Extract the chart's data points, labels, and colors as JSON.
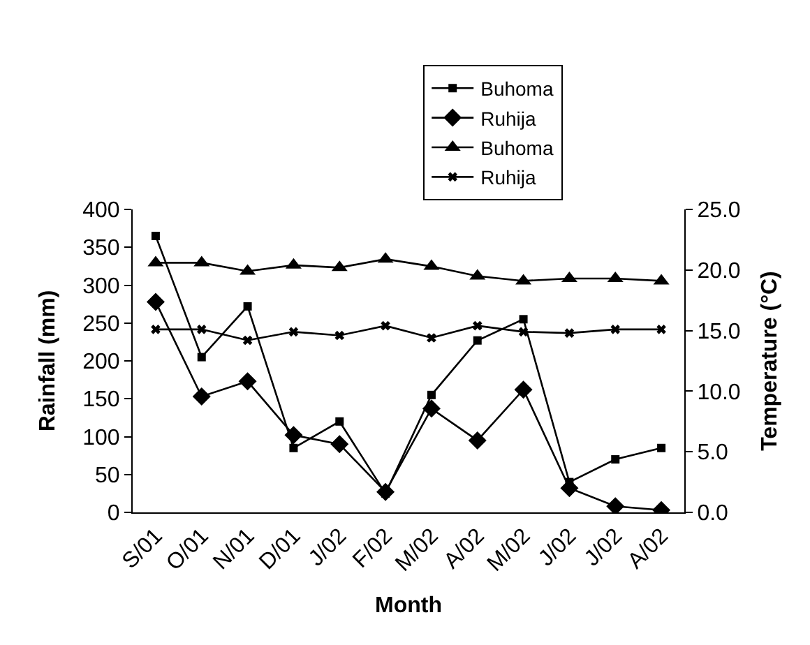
{
  "chart_data": {
    "type": "line",
    "xlabel": "Month",
    "ylabel": "Rainfall (mm)",
    "y2label": "Temperature (°C)",
    "categories": [
      "S/01",
      "O/01",
      "N/01",
      "D/01",
      "J/02",
      "F/02",
      "M/02",
      "A/02",
      "M/02",
      "J/02",
      "J/02",
      "A/02"
    ],
    "series": [
      {
        "name": "Buhoma",
        "color": "#000000",
        "marker": "square",
        "values": [
          365,
          205,
          272,
          85,
          120,
          25,
          155,
          227,
          255,
          40,
          70,
          85
        ]
      },
      {
        "name": "Ruhija",
        "color": "#000000",
        "marker": "diamond",
        "values": [
          278,
          153,
          173,
          102,
          90,
          27,
          137,
          95,
          162,
          32,
          8,
          3
        ]
      },
      {
        "name": "Buhoma",
        "color": "#000000",
        "marker": "triangle",
        "axis": "y2",
        "values": [
          20.6,
          20.6,
          19.9,
          20.4,
          20.2,
          20.9,
          20.3,
          19.5,
          19.1,
          19.3,
          19.3,
          19.1
        ]
      },
      {
        "name": "Ruhija",
        "color": "#000000",
        "marker": "cross",
        "axis": "y2",
        "values": [
          15.1,
          15.1,
          14.2,
          14.9,
          14.6,
          15.4,
          14.4,
          15.4,
          14.9,
          14.8,
          15.1,
          15.1
        ]
      }
    ],
    "ylim": [
      0,
      400
    ],
    "yticks": [
      0,
      50,
      100,
      150,
      200,
      250,
      300,
      350,
      400
    ],
    "y2lim": [
      0,
      25
    ],
    "y2ticks": [
      {
        "value": 0,
        "label": "0.0"
      },
      {
        "value": 5,
        "label": "5.0"
      },
      {
        "value": 10,
        "label": "10.0"
      },
      {
        "value": 15,
        "label": "15.0"
      },
      {
        "value": 20,
        "label": "20.0"
      },
      {
        "value": 25,
        "label": "25.0"
      }
    ],
    "legend": "top right",
    "grid": false,
    "line_style": "solid"
  }
}
